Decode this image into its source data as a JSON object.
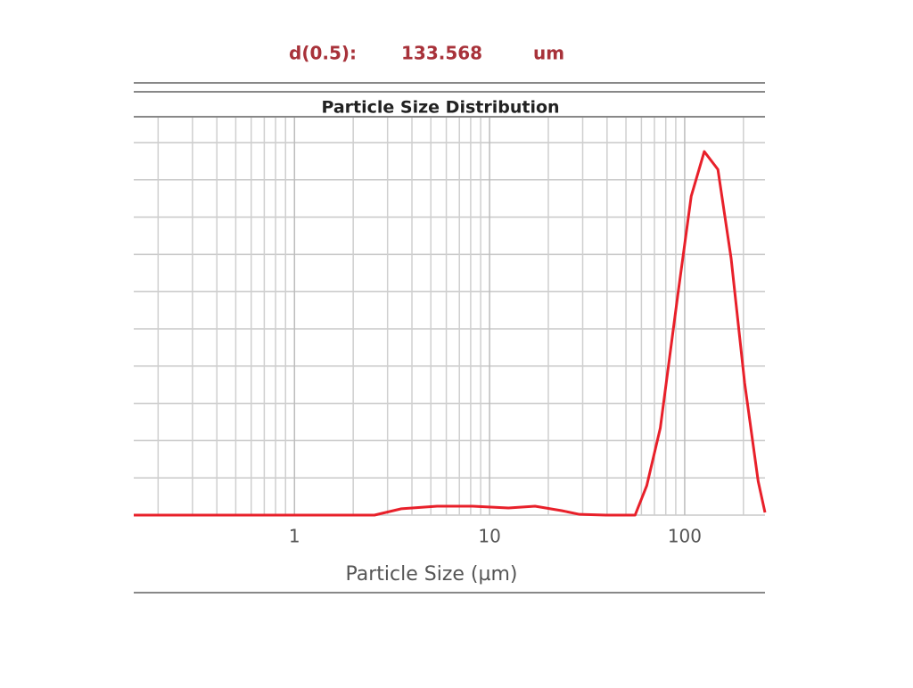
{
  "chart_data": {
    "type": "line",
    "title": "Particle Size Distribution",
    "annotation": {
      "label": "d(0.5):",
      "value": "133.568",
      "unit": "um"
    },
    "xlabel": "Particle Size (µm)",
    "xscale": "log",
    "xlim": [
      0.15,
      258
    ],
    "ylim": [
      0,
      10.67
    ],
    "xticks": [
      1,
      10,
      100
    ],
    "x_minor_ticks": [
      0.2,
      0.3,
      0.4,
      0.5,
      0.6,
      0.7,
      0.8,
      0.9,
      2,
      3,
      4,
      5,
      6,
      7,
      8,
      9,
      20,
      30,
      40,
      50,
      60,
      70,
      80,
      90,
      200
    ],
    "yticks": [
      0,
      1,
      2,
      3,
      4,
      5,
      6,
      7,
      8,
      9,
      10
    ],
    "grid": true,
    "series": [
      {
        "color": "#e8202a",
        "x": [
          0.15,
          1,
          2.57,
          3.53,
          5.38,
          8.2,
          12.5,
          17.1,
          23.4,
          28.9,
          39.6,
          55.7,
          63.9,
          75,
          92.3,
          108,
          126,
          148,
          173,
          203,
          238,
          258
        ],
        "values": [
          0,
          0,
          0,
          0.17,
          0.24,
          0.24,
          0.19,
          0.24,
          0.12,
          0.02,
          0,
          0,
          0.79,
          2.34,
          5.93,
          8.56,
          9.76,
          9.28,
          6.89,
          3.54,
          0.91,
          0.07
        ]
      }
    ]
  }
}
